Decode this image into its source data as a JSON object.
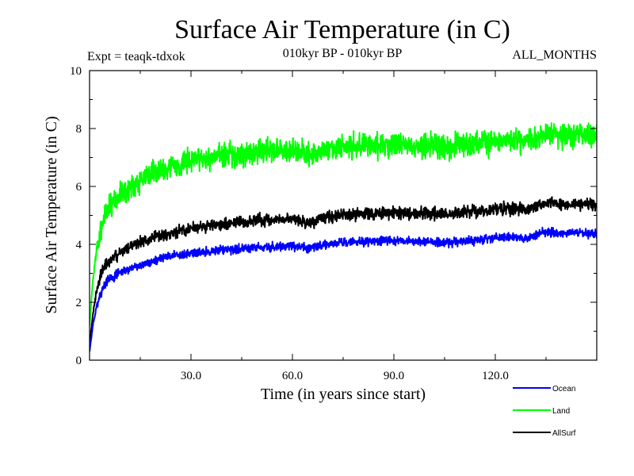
{
  "chart_data": {
    "type": "line",
    "title": "Surface Air Temperature (in C)",
    "subtitle": "010kyr BP - 010kyr BP",
    "expt_label": "Expt = teaqk-tdxok",
    "season_label": "ALL_MONTHS",
    "xlabel": "Time (in years since start)",
    "ylabel": "Surface Air Temperature (in C)",
    "xlim": [
      0,
      150
    ],
    "ylim": [
      0,
      10
    ],
    "x_ticks": [
      30,
      60,
      90,
      120
    ],
    "x_tick_labels": [
      "30.0",
      "60.0",
      "90.0",
      "120.0"
    ],
    "y_ticks": [
      0,
      2,
      4,
      6,
      8,
      10
    ],
    "y_tick_labels": [
      "0",
      "2",
      "4",
      "6",
      "8",
      "10"
    ],
    "series": [
      {
        "name": "Ocean",
        "color": "#0000ff",
        "x": [
          0,
          1,
          2,
          3,
          4,
          5,
          7,
          10,
          15,
          20,
          25,
          30,
          35,
          40,
          45,
          50,
          55,
          60,
          65,
          70,
          75,
          80,
          85,
          90,
          95,
          100,
          105,
          110,
          115,
          120,
          125,
          130,
          135,
          140,
          145,
          150
        ],
        "values": [
          0.3,
          1.2,
          1.8,
          2.2,
          2.5,
          2.7,
          2.9,
          3.1,
          3.3,
          3.5,
          3.6,
          3.7,
          3.75,
          3.8,
          3.85,
          3.9,
          3.9,
          3.95,
          3.85,
          4.0,
          4.05,
          4.1,
          4.1,
          4.15,
          4.1,
          4.1,
          4.05,
          4.1,
          4.15,
          4.2,
          4.25,
          4.2,
          4.45,
          4.4,
          4.4,
          4.35
        ],
        "noise": 0.22
      },
      {
        "name": "Land",
        "color": "#00ff00",
        "x": [
          0,
          1,
          2,
          3,
          4,
          5,
          7,
          10,
          15,
          20,
          25,
          30,
          35,
          40,
          45,
          50,
          55,
          60,
          65,
          70,
          75,
          80,
          85,
          90,
          95,
          100,
          105,
          110,
          115,
          120,
          125,
          130,
          135,
          140,
          145,
          150
        ],
        "values": [
          1.2,
          2.8,
          3.7,
          4.3,
          4.8,
          5.1,
          5.5,
          5.8,
          6.2,
          6.5,
          6.7,
          6.9,
          7.0,
          7.1,
          7.15,
          7.2,
          7.2,
          7.25,
          7.1,
          7.3,
          7.35,
          7.4,
          7.4,
          7.45,
          7.4,
          7.45,
          7.35,
          7.45,
          7.5,
          7.55,
          7.6,
          7.55,
          7.75,
          7.75,
          7.8,
          7.7
        ],
        "noise": 0.6
      },
      {
        "name": "AllSurf",
        "color": "#000000",
        "x": [
          0,
          1,
          2,
          3,
          4,
          5,
          7,
          10,
          15,
          20,
          25,
          30,
          35,
          40,
          45,
          50,
          55,
          60,
          65,
          70,
          75,
          80,
          85,
          90,
          95,
          100,
          105,
          110,
          115,
          120,
          125,
          130,
          135,
          140,
          145,
          150
        ],
        "values": [
          0.5,
          1.6,
          2.3,
          2.8,
          3.1,
          3.3,
          3.55,
          3.8,
          4.05,
          4.3,
          4.4,
          4.55,
          4.65,
          4.7,
          4.75,
          4.85,
          4.85,
          4.9,
          4.75,
          4.95,
          5.0,
          5.05,
          5.05,
          5.1,
          5.05,
          5.1,
          5.0,
          5.1,
          5.15,
          5.2,
          5.25,
          5.2,
          5.45,
          5.4,
          5.4,
          5.35
        ],
        "noise": 0.3
      }
    ],
    "legend_position": "bottom-right"
  }
}
